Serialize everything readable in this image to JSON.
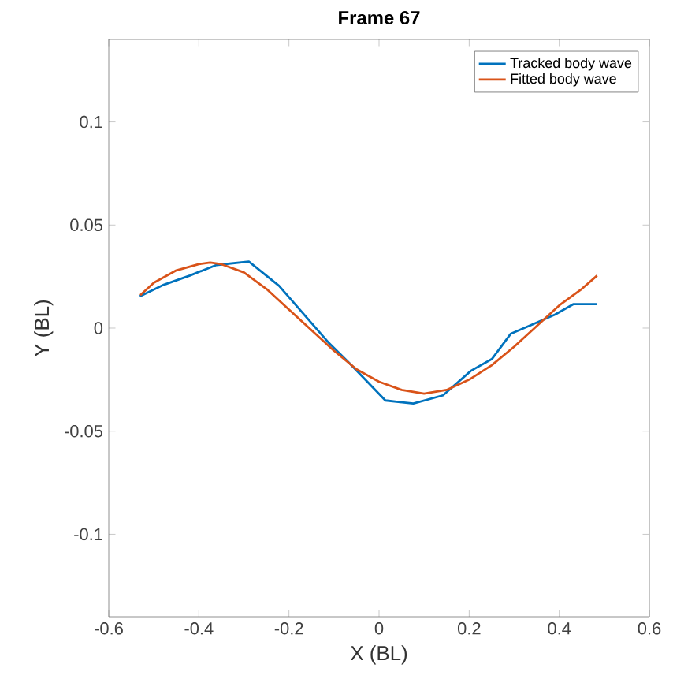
{
  "chart_data": {
    "type": "line",
    "title": "Frame 67",
    "xlabel": "X (BL)",
    "ylabel": "Y (BL)",
    "xlim": [
      -0.6,
      0.6
    ],
    "ylim": [
      -0.14,
      0.14
    ],
    "xticks": [
      -0.6,
      -0.4,
      -0.2,
      0,
      0.2,
      0.4,
      0.6
    ],
    "yticks": [
      -0.1,
      -0.05,
      0,
      0.05,
      0.1
    ],
    "legend": "top right",
    "grid": false,
    "marker": "none",
    "line_style": "solid",
    "series": [
      {
        "name": "Tracked body wave",
        "color": "#0072bd",
        "x": [
          -0.531,
          -0.478,
          -0.42,
          -0.361,
          -0.289,
          -0.222,
          -0.111,
          -0.064,
          0.014,
          0.076,
          0.142,
          0.204,
          0.251,
          0.292,
          0.338,
          0.391,
          0.431,
          0.484
        ],
        "values": [
          0.0154,
          0.021,
          0.0255,
          0.0306,
          0.0323,
          0.0205,
          -0.0073,
          -0.0174,
          -0.0351,
          -0.0366,
          -0.0326,
          -0.0207,
          -0.0149,
          -0.0028,
          0.0015,
          0.0066,
          0.0116,
          0.0116
        ]
      },
      {
        "name": "Fitted body wave",
        "color": "#d95319",
        "x": [
          -0.53,
          -0.5,
          -0.45,
          -0.4,
          -0.375,
          -0.35,
          -0.3,
          -0.25,
          -0.2,
          -0.15,
          -0.1,
          -0.05,
          0,
          0.05,
          0.1,
          0.15,
          0.2,
          0.25,
          0.3,
          0.35,
          0.4,
          0.45,
          0.484
        ],
        "values": [
          0.016,
          0.022,
          0.028,
          0.031,
          0.0318,
          0.031,
          0.027,
          0.019,
          0.009,
          -0.001,
          -0.011,
          -0.02,
          -0.026,
          -0.03,
          -0.0318,
          -0.03,
          -0.025,
          -0.018,
          -0.009,
          0.001,
          0.011,
          0.019,
          0.0255
        ]
      }
    ]
  }
}
